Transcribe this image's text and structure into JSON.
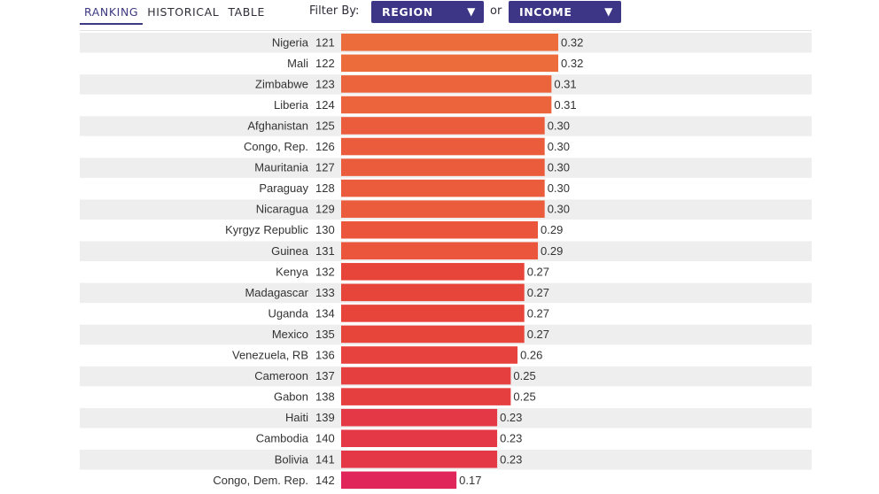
{
  "tabs": [
    "RANKING",
    "HISTORICAL",
    "TABLE"
  ],
  "filter": {
    "label": "Filter By:",
    "or": "or",
    "region": "REGION",
    "income": "INCOME",
    "caret": "▼",
    "select_color": "#3d3585"
  },
  "colors": {
    "row_stripe": "#eeeeee",
    "bar_high": "#ec6c3c",
    "bar_mid": "#e8453a",
    "bar_low": "#e0255a"
  },
  "chart_data": {
    "type": "bar",
    "orientation": "horizontal",
    "xlim": [
      0,
      0.32
    ],
    "grid": false,
    "categories": [
      "Nigeria",
      "Mali",
      "Zimbabwe",
      "Liberia",
      "Afghanistan",
      "Congo, Rep.",
      "Mauritania",
      "Paraguay",
      "Nicaragua",
      "Kyrgyz Republic",
      "Guinea",
      "Kenya",
      "Madagascar",
      "Uganda",
      "Mexico",
      "Venezuela, RB",
      "Cameroon",
      "Gabon",
      "Haiti",
      "Cambodia",
      "Bolivia",
      "Congo, Dem. Rep."
    ],
    "ranks": [
      121,
      122,
      123,
      124,
      125,
      126,
      127,
      128,
      129,
      130,
      131,
      132,
      133,
      134,
      135,
      136,
      137,
      138,
      139,
      140,
      141,
      142
    ],
    "values": [
      0.32,
      0.32,
      0.31,
      0.31,
      0.3,
      0.3,
      0.3,
      0.3,
      0.3,
      0.29,
      0.29,
      0.27,
      0.27,
      0.27,
      0.27,
      0.26,
      0.25,
      0.25,
      0.23,
      0.23,
      0.23,
      0.17
    ],
    "value_labels": [
      "0.32",
      "0.32",
      "0.31",
      "0.31",
      "0.30",
      "0.30",
      "0.30",
      "0.30",
      "0.30",
      "0.29",
      "0.29",
      "0.27",
      "0.27",
      "0.27",
      "0.27",
      "0.26",
      "0.25",
      "0.25",
      "0.23",
      "0.23",
      "0.23",
      "0.17"
    ]
  }
}
